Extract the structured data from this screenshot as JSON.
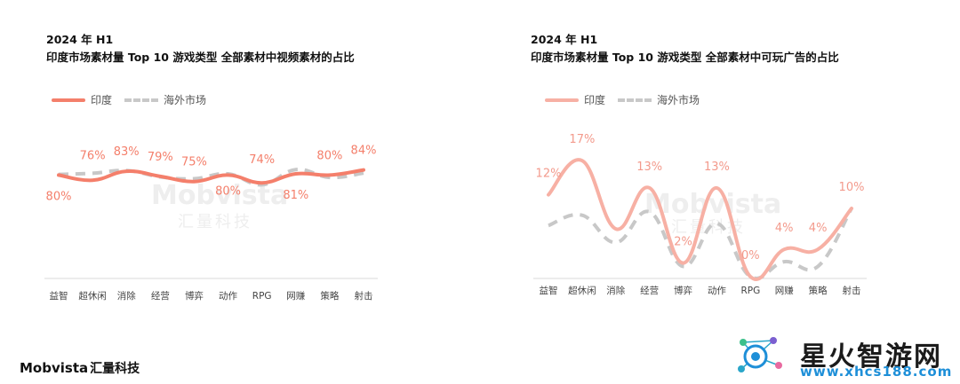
{
  "chart_data": [
    {
      "type": "line",
      "period": "2024 年 H1",
      "title": "印度市场素材量 Top 10 游戏类型  全部素材中视频素材的占比",
      "categories": [
        "益智",
        "超休闲",
        "消除",
        "经营",
        "博弈",
        "动作",
        "RPG",
        "网赚",
        "策略",
        "射击"
      ],
      "series": [
        {
          "name": "印度",
          "style": "solid",
          "color": "#f47f6b",
          "values": [
            80,
            76,
            83,
            79,
            75,
            80,
            74,
            81,
            80,
            84
          ],
          "labels": [
            "80%",
            "76%",
            "83%",
            "79%",
            "75%",
            "80%",
            "74%",
            "81%",
            "80%",
            "84%"
          ]
        },
        {
          "name": "海外市场",
          "style": "dashed",
          "color": "#c8c8c8",
          "values": [
            80.6,
            81.4,
            83.5,
            78.6,
            77.2,
            81,
            72.5,
            84.3,
            78.2,
            81.5
          ]
        }
      ],
      "ylim": [
        0,
        140
      ],
      "grid": false,
      "legend": "top-left"
    },
    {
      "type": "line",
      "period": "2024 年 H1",
      "title": "印度市场素材量 Top 10 游戏类型  全部素材中可玩广告的占比",
      "categories": [
        "益智",
        "超休闲",
        "消除",
        "经营",
        "博弈",
        "动作",
        "RPG",
        "网赚",
        "策略",
        "射击"
      ],
      "series": [
        {
          "name": "印度",
          "style": "solid",
          "color": "#f7b0a4",
          "values": [
            12,
            17,
            7,
            13,
            2,
            13,
            0,
            4,
            4,
            10
          ],
          "labels": [
            "12%",
            "17%",
            "",
            "13%",
            "2%",
            "13%",
            "0%",
            "4%",
            "4%",
            "10%"
          ]
        },
        {
          "name": "海外市场",
          "style": "dashed",
          "color": "#c8c8c8",
          "values": [
            7.5,
            9,
            5,
            9.5,
            1.5,
            7.8,
            0,
            2.2,
            1.5,
            10
          ]
        }
      ],
      "ylim": [
        0,
        20
      ],
      "grid": false,
      "legend": "top-left"
    }
  ],
  "watermark": {
    "brand": "Mobvista",
    "sub": "汇量科技"
  },
  "footer": {
    "brand": "Mobvista",
    "sub": "汇量科技"
  },
  "site_watermark": {
    "title": "星火智游网",
    "url": "www.xhcs188.com"
  }
}
